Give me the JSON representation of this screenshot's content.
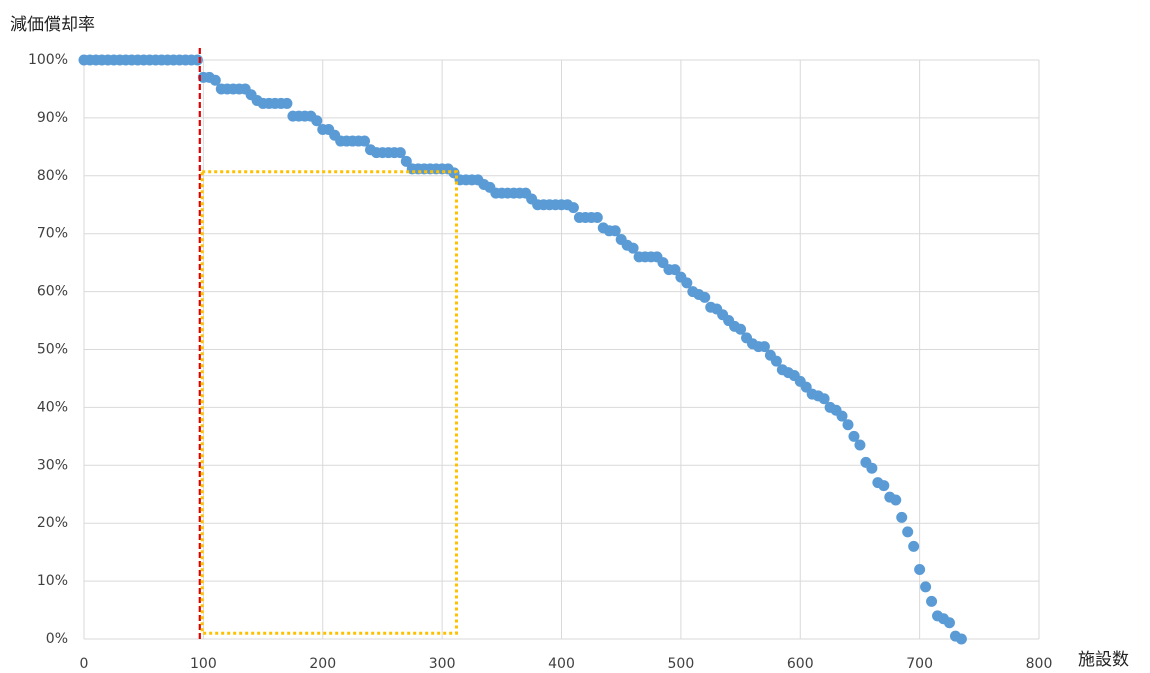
{
  "chart_data": {
    "type": "scatter",
    "x_label": "施設数",
    "y_label": "減価償却率",
    "xlim": [
      0,
      800
    ],
    "xticks": [
      0,
      100,
      200,
      300,
      400,
      500,
      600,
      700,
      800
    ],
    "ylim": [
      0,
      100
    ],
    "yticks": [
      {
        "value": 0,
        "label": "0%"
      },
      {
        "value": 10,
        "label": "10%"
      },
      {
        "value": 20,
        "label": "20%"
      },
      {
        "value": 30,
        "label": "30%"
      },
      {
        "value": 40,
        "label": "40%"
      },
      {
        "value": 50,
        "label": "50%"
      },
      {
        "value": 60,
        "label": "60%"
      },
      {
        "value": 70,
        "label": "70%"
      },
      {
        "value": 80,
        "label": "80%"
      },
      {
        "value": 90,
        "label": "90%"
      },
      {
        "value": 100,
        "label": "100%"
      }
    ],
    "grid": true,
    "color": "#5b9bd5",
    "x": [
      0,
      5,
      10,
      15,
      20,
      25,
      30,
      35,
      40,
      45,
      50,
      55,
      60,
      65,
      70,
      75,
      80,
      85,
      90,
      95,
      100,
      105,
      110,
      115,
      120,
      125,
      130,
      135,
      140,
      145,
      150,
      155,
      160,
      165,
      170,
      175,
      180,
      185,
      190,
      195,
      200,
      205,
      210,
      215,
      220,
      225,
      230,
      235,
      240,
      245,
      250,
      255,
      260,
      265,
      270,
      275,
      280,
      285,
      290,
      295,
      300,
      305,
      310,
      315,
      320,
      325,
      330,
      335,
      340,
      345,
      350,
      355,
      360,
      365,
      370,
      375,
      380,
      385,
      390,
      395,
      400,
      405,
      410,
      415,
      420,
      425,
      430,
      435,
      440,
      445,
      450,
      455,
      460,
      465,
      470,
      475,
      480,
      485,
      490,
      495,
      500,
      505,
      510,
      515,
      520,
      525,
      530,
      535,
      540,
      545,
      550,
      555,
      560,
      565,
      570,
      575,
      580,
      585,
      590,
      595,
      600,
      605,
      610,
      615,
      620,
      625,
      630,
      635,
      640,
      645,
      650,
      655,
      660,
      665,
      670,
      675,
      680,
      685,
      690,
      695,
      700,
      705,
      710,
      715,
      720,
      725,
      730,
      735
    ],
    "values": [
      100,
      100,
      100,
      100,
      100,
      100,
      100,
      100,
      100,
      100,
      100,
      100,
      100,
      100,
      100,
      100,
      100,
      100,
      100,
      100,
      97,
      97,
      96.5,
      95,
      95,
      95,
      95,
      95,
      94,
      93,
      92.5,
      92.5,
      92.5,
      92.5,
      92.5,
      90.3,
      90.3,
      90.3,
      90.3,
      89.5,
      88,
      88,
      87,
      86,
      86,
      86,
      86,
      86,
      84.5,
      84,
      84,
      84,
      84,
      84,
      82.5,
      81.2,
      81.2,
      81.2,
      81.2,
      81.2,
      81.2,
      81.2,
      80.5,
      79.3,
      79.3,
      79.3,
      79.3,
      78.5,
      78,
      77,
      77,
      77,
      77,
      77,
      77,
      76,
      75,
      75,
      75,
      75,
      75,
      75,
      74.5,
      72.8,
      72.8,
      72.8,
      72.8,
      71,
      70.5,
      70.5,
      69,
      68,
      67.5,
      66,
      66,
      66,
      66,
      65,
      63.8,
      63.8,
      62.5,
      61.5,
      60,
      59.5,
      59,
      57.3,
      57,
      56,
      55,
      54,
      53.5,
      52,
      51,
      50.5,
      50.5,
      49,
      48,
      46.5,
      46,
      45.5,
      44.5,
      43.5,
      42.3,
      42,
      41.5,
      40,
      39.5,
      38.5,
      37,
      35,
      33.5,
      30.5,
      29.5,
      27,
      26.5,
      24.5,
      24,
      21,
      18.5,
      16,
      12,
      9,
      6.5,
      4,
      3.5,
      2.8,
      0.5,
      0
    ],
    "shapes": [
      {
        "type": "vline",
        "x": 97,
        "color": "#e00000"
      },
      {
        "type": "rect",
        "x0": 99,
        "x1": 312,
        "y0": 1,
        "y1": 80.7,
        "color": "#ffc000"
      }
    ]
  }
}
